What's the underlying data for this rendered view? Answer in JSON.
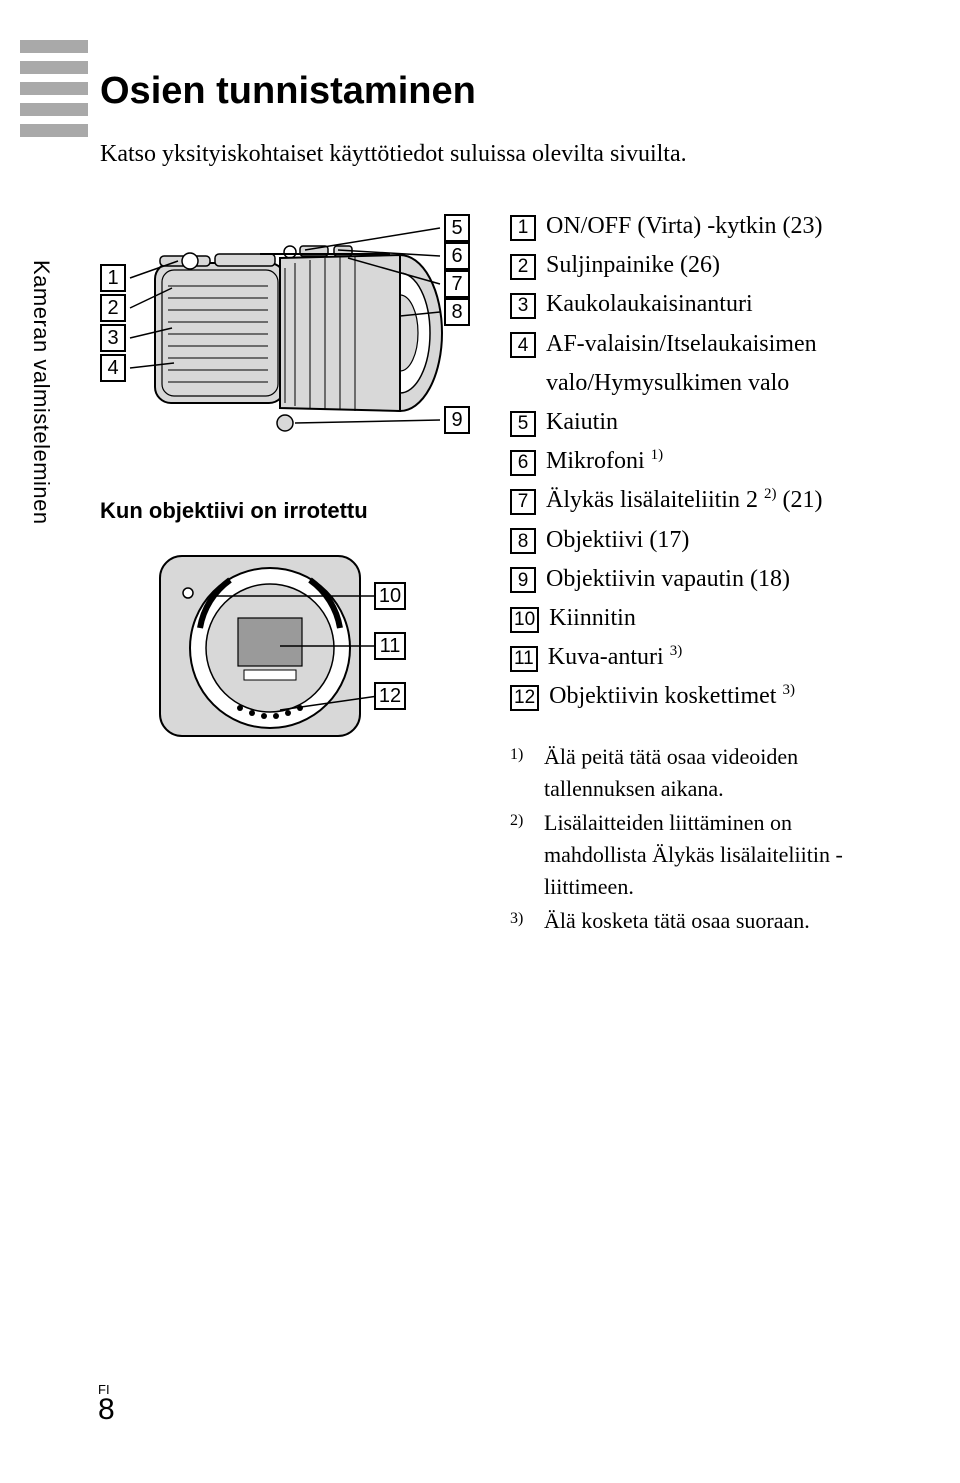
{
  "title": "Osien tunnistaminen",
  "subtitle": "Katso yksityiskohtaiset käyttötiedot suluissa olevilta sivuilta.",
  "sidebar_label": "Kameran valmisteleminen",
  "sub_caption": "Kun objektiivi on irrotettu",
  "parts": [
    {
      "n": "1",
      "label": "ON/OFF (Virta) -kytkin (23)",
      "indent": false,
      "sup": ""
    },
    {
      "n": "2",
      "label": "Suljinpainike (26)",
      "indent": false,
      "sup": ""
    },
    {
      "n": "3",
      "label": "Kaukolaukaisinanturi",
      "indent": false,
      "sup": ""
    },
    {
      "n": "4",
      "label": "AF-valaisin/Itselaukaisimen",
      "indent": false,
      "sup": ""
    },
    {
      "n": "",
      "label": "valo/Hymysulkimen valo",
      "indent": true,
      "sup": ""
    },
    {
      "n": "5",
      "label": "Kaiutin",
      "indent": false,
      "sup": ""
    },
    {
      "n": "6",
      "label": "Mikrofoni ",
      "indent": false,
      "sup": "1)"
    },
    {
      "n": "7",
      "label_pre": "Älykäs lisälaiteliitin 2 ",
      "sup": "2)",
      "label_post": " (21)",
      "indent": false
    },
    {
      "n": "8",
      "label": "Objektiivi (17)",
      "indent": false,
      "sup": ""
    },
    {
      "n": "9",
      "label": "Objektiivin vapautin (18)",
      "indent": false,
      "sup": ""
    },
    {
      "n": "10",
      "label": "Kiinnitin",
      "indent": false,
      "sup": ""
    },
    {
      "n": "11",
      "label_pre": "Kuva-anturi ",
      "sup": "3)",
      "label_post": "",
      "indent": false
    },
    {
      "n": "12",
      "label_pre": "Objektiivin koskettimet ",
      "sup": "3)",
      "label_post": "",
      "indent": false
    }
  ],
  "footnotes": [
    {
      "mark": "1)",
      "text": "Älä peitä tätä osaa videoiden tallennuksen aikana."
    },
    {
      "mark": "2)",
      "text": "Lisälaitteiden liittäminen on mahdollista Älykäs lisälaiteliitin -liittimeen."
    },
    {
      "mark": "3)",
      "text": "Älä kosketa tätä osaa suoraan."
    }
  ],
  "page_lang": "FI",
  "page_number": "8",
  "colors": {
    "side_bar_fill": "#a9a9a9",
    "cam_body_fill": "#d8d8d8",
    "cam_body_stroke": "#000000",
    "mount_fill": "#d8d8d8",
    "grid_shade": "#bfbfbf"
  },
  "top_callouts_left": [
    "1",
    "2",
    "3",
    "4"
  ],
  "top_callouts_right": [
    "5",
    "6",
    "7",
    "8",
    "9"
  ],
  "bottom_callouts": [
    "10",
    "11",
    "12"
  ]
}
